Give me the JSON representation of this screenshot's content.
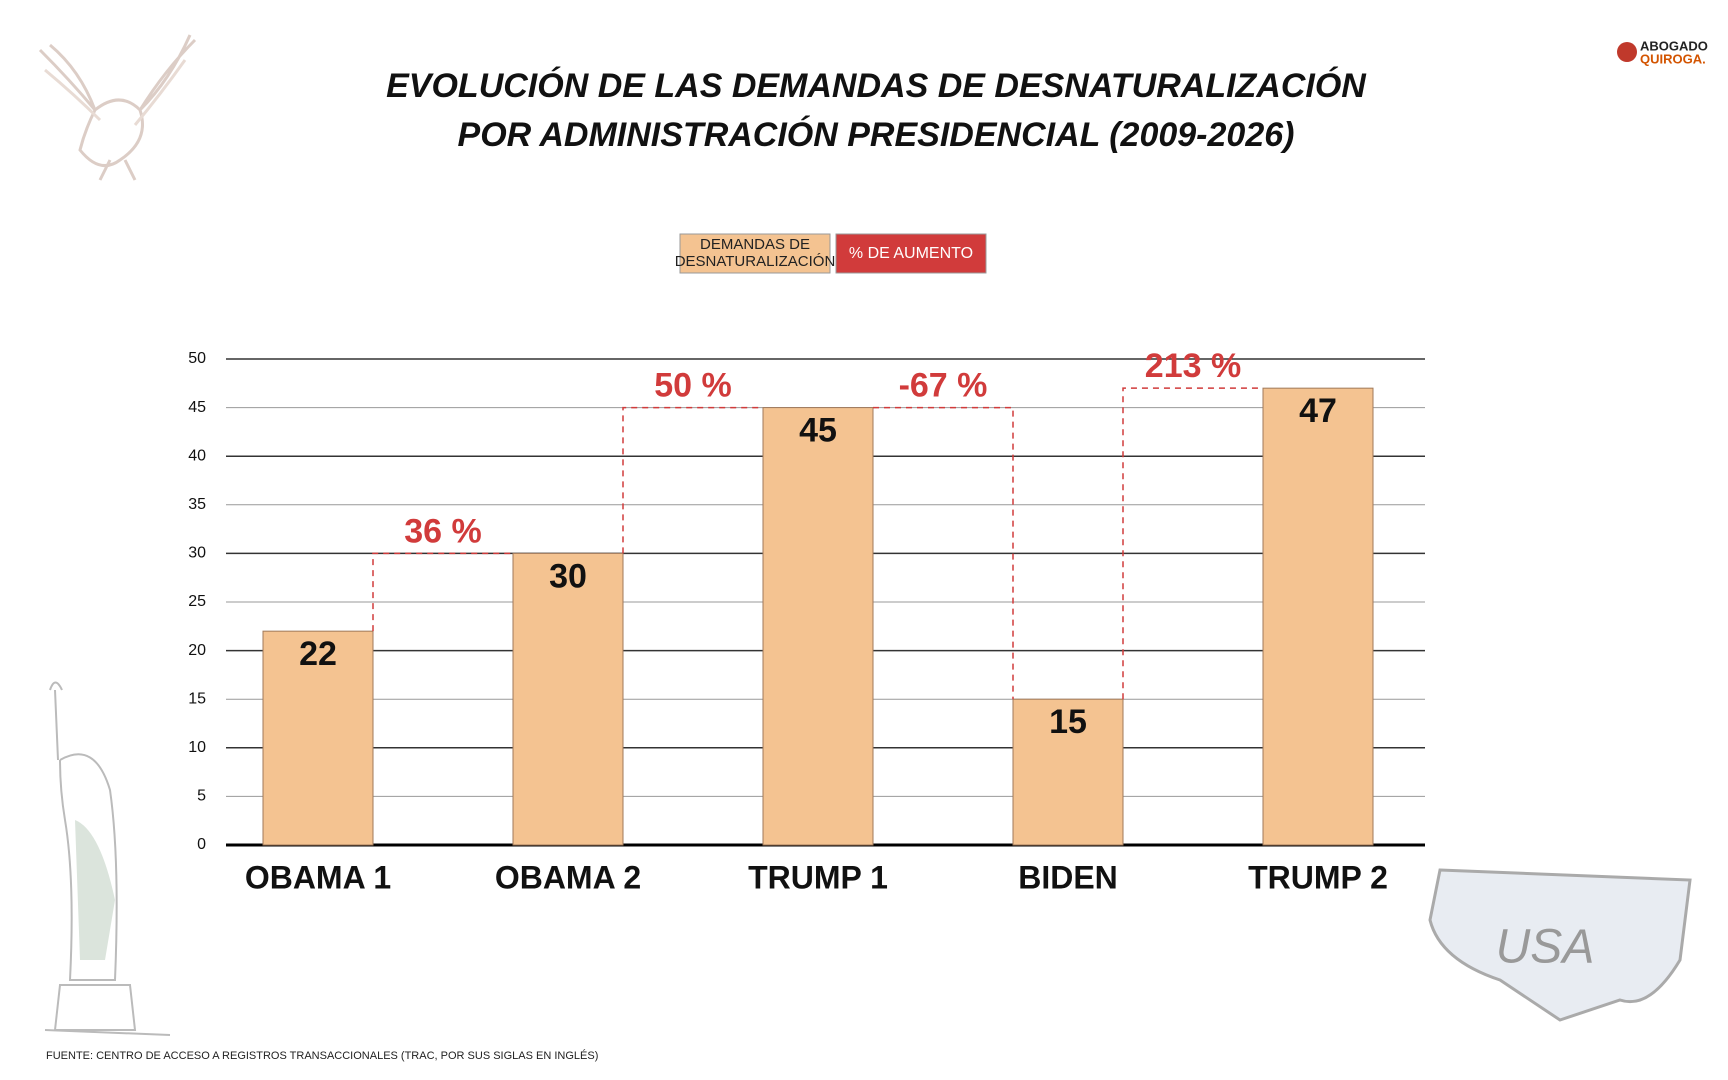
{
  "chart_data": {
    "type": "bar",
    "title": [
      "EVOLUCIÓN DE LAS DEMANDAS DE DESNATURALIZACIÓN",
      "POR ADMINISTRACIÓN PRESIDENCIAL (2009-2026)"
    ],
    "categories": [
      "OBAMA 1",
      "OBAMA 2",
      "TRUMP 1",
      "BIDEN",
      "TRUMP 2"
    ],
    "series": [
      {
        "name": "DEMANDAS DE DESNATURALIZACIÓN",
        "color": "#f4c391",
        "values": [
          22,
          30,
          45,
          15,
          47
        ]
      }
    ],
    "change_legend": {
      "name": "% DE AUMENTO",
      "color": "#d13b3b"
    },
    "change_labels": [
      "36 %",
      "50 %",
      "-67 %",
      "213 %"
    ],
    "ylim": [
      0,
      50
    ],
    "yticks": [
      0,
      5,
      10,
      15,
      20,
      25,
      30,
      35,
      40,
      45,
      50
    ],
    "grid": true,
    "source": "FUENTE: CENTRO DE ACCESO A REGISTROS TRANSACCIONALES (TRAC, POR SUS SIGLAS EN INGLÉS)",
    "logo": [
      "ABOGADO",
      "QUIROGA."
    ],
    "map_label": "USA"
  }
}
